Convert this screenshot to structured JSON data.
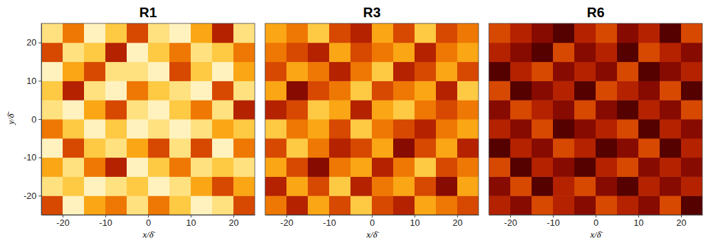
{
  "chart_data": [
    {
      "type": "heatmap",
      "title": "R1",
      "x_label": "x/δ̄",
      "y_label": "y/δ̄",
      "xlim": [
        -25,
        25
      ],
      "ylim": [
        -25,
        25
      ],
      "xticks": [
        -20,
        -10,
        0,
        10,
        20
      ],
      "yticks": [
        -20,
        -10,
        0,
        10,
        20
      ],
      "x": [
        -22.5,
        -17.5,
        -12.5,
        -7.5,
        -2.5,
        2.5,
        7.5,
        12.5,
        17.5,
        22.5
      ],
      "y": [
        -22.5,
        -17.5,
        -12.5,
        -7.5,
        -2.5,
        2.5,
        7.5,
        12.5,
        17.5,
        22.5
      ],
      "cells": [
        [
          0.6,
          0.1,
          0.4,
          0.5,
          0.2,
          0.5,
          0.3,
          0.1,
          0.2,
          0.6
        ],
        [
          0.2,
          0.3,
          0.1,
          0.2,
          0.3,
          0.1,
          0.2,
          0.4,
          0.6,
          0.4
        ],
        [
          0.4,
          0.2,
          0.5,
          0.7,
          0.1,
          0.3,
          0.5,
          0.2,
          0.3,
          0.2
        ],
        [
          0.1,
          0.6,
          0.3,
          0.2,
          0.4,
          0.6,
          0.2,
          0.6,
          0.1,
          0.5
        ],
        [
          0.5,
          0.3,
          0.1,
          0.3,
          0.1,
          0.2,
          0.1,
          0.2,
          0.4,
          0.3
        ],
        [
          0.2,
          0.1,
          0.4,
          0.6,
          0.2,
          0.1,
          0.3,
          0.5,
          0.2,
          0.7
        ],
        [
          0.3,
          0.7,
          0.2,
          0.1,
          0.5,
          0.3,
          0.2,
          0.1,
          0.6,
          0.2
        ],
        [
          0.1,
          0.4,
          0.6,
          0.2,
          0.2,
          0.1,
          0.6,
          0.3,
          0.1,
          0.4
        ],
        [
          0.6,
          0.2,
          0.3,
          0.7,
          0.1,
          0.3,
          0.5,
          0.2,
          0.3,
          0.5
        ],
        [
          0.2,
          0.5,
          0.1,
          0.3,
          0.6,
          0.2,
          0.1,
          0.4,
          0.7,
          0.2
        ]
      ]
    },
    {
      "type": "heatmap",
      "title": "R3",
      "x_label": "x/δ̄",
      "tick_labels": "x",
      "xlim": [
        -25,
        25
      ],
      "ylim": [
        -25,
        25
      ],
      "xticks": [
        -20,
        -10,
        0,
        10,
        20
      ],
      "x": [
        -22.5,
        -17.5,
        -12.5,
        -7.5,
        -2.5,
        2.5,
        7.5,
        12.5,
        17.5,
        22.5
      ],
      "y": [
        -22.5,
        -17.5,
        -12.5,
        -7.5,
        -2.5,
        2.5,
        7.5,
        12.5,
        17.5,
        22.5
      ],
      "cells": [
        [
          0.5,
          0.7,
          0.4,
          0.6,
          0.3,
          0.6,
          0.7,
          0.4,
          0.5,
          0.6
        ],
        [
          0.7,
          0.4,
          0.6,
          0.3,
          0.7,
          0.5,
          0.4,
          0.6,
          0.8,
          0.4
        ],
        [
          0.4,
          0.6,
          0.8,
          0.5,
          0.4,
          0.7,
          0.5,
          0.3,
          0.6,
          0.5
        ],
        [
          0.6,
          0.3,
          0.5,
          0.7,
          0.6,
          0.4,
          0.8,
          0.6,
          0.4,
          0.7
        ],
        [
          0.3,
          0.5,
          0.4,
          0.6,
          0.3,
          0.5,
          0.6,
          0.7,
          0.5,
          0.4
        ],
        [
          0.7,
          0.6,
          0.3,
          0.4,
          0.7,
          0.4,
          0.3,
          0.5,
          0.6,
          0.5
        ],
        [
          0.4,
          0.8,
          0.6,
          0.5,
          0.3,
          0.6,
          0.5,
          0.4,
          0.7,
          0.3
        ],
        [
          0.6,
          0.4,
          0.5,
          0.7,
          0.5,
          0.3,
          0.7,
          0.6,
          0.4,
          0.6
        ],
        [
          0.5,
          0.6,
          0.7,
          0.4,
          0.6,
          0.5,
          0.4,
          0.7,
          0.5,
          0.4
        ],
        [
          0.4,
          0.5,
          0.3,
          0.6,
          0.7,
          0.4,
          0.6,
          0.3,
          0.6,
          0.5
        ]
      ]
    },
    {
      "type": "heatmap",
      "title": "R6",
      "x_label": "x/δ̄",
      "tick_labels": "x",
      "xlim": [
        -25,
        25
      ],
      "ylim": [
        -25,
        25
      ],
      "xticks": [
        -20,
        -10,
        0,
        10,
        20
      ],
      "x": [
        -22.5,
        -17.5,
        -12.5,
        -7.5,
        -2.5,
        2.5,
        7.5,
        12.5,
        17.5,
        22.5
      ],
      "y": [
        -22.5,
        -17.5,
        -12.5,
        -7.5,
        -2.5,
        2.5,
        7.5,
        12.5,
        17.5,
        22.5
      ],
      "cells": [
        [
          0.7,
          0.8,
          0.6,
          0.7,
          0.8,
          0.6,
          0.7,
          0.8,
          0.6,
          0.9
        ],
        [
          0.8,
          0.6,
          0.9,
          0.7,
          0.6,
          0.8,
          0.9,
          0.7,
          0.8,
          0.7
        ],
        [
          0.6,
          0.9,
          0.7,
          0.8,
          0.9,
          0.7,
          0.6,
          0.8,
          0.7,
          0.8
        ],
        [
          0.9,
          0.7,
          0.8,
          0.6,
          0.7,
          0.9,
          0.8,
          0.6,
          0.9,
          0.7
        ],
        [
          0.7,
          0.8,
          0.6,
          0.9,
          0.8,
          0.7,
          0.6,
          0.9,
          0.7,
          0.8
        ],
        [
          0.8,
          0.6,
          0.7,
          0.8,
          0.6,
          0.8,
          0.9,
          0.7,
          0.8,
          0.6
        ],
        [
          0.6,
          0.9,
          0.8,
          0.7,
          0.9,
          0.6,
          0.7,
          0.8,
          0.6,
          0.9
        ],
        [
          0.9,
          0.7,
          0.6,
          0.8,
          0.7,
          0.8,
          0.6,
          0.9,
          0.8,
          0.7
        ],
        [
          0.7,
          0.8,
          0.9,
          0.6,
          0.8,
          0.7,
          0.9,
          0.6,
          0.7,
          0.8
        ],
        [
          0.6,
          0.7,
          0.8,
          0.9,
          0.7,
          0.6,
          0.8,
          0.7,
          0.9,
          0.6
        ]
      ]
    }
  ]
}
